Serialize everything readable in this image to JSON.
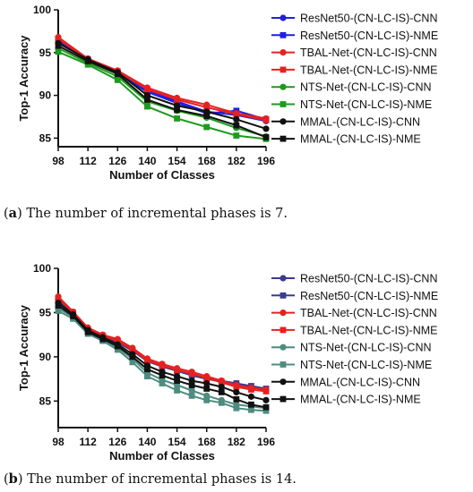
{
  "chart_data": [
    {
      "type": "line",
      "caption_label": "(a)",
      "caption_letter": "a",
      "caption_text": "The number of incremental phases is 7.",
      "xlabel": "Number of Classes",
      "ylabel": "Top-1 Accuracy",
      "x": [
        98,
        112,
        126,
        140,
        154,
        168,
        182,
        196
      ],
      "ylim": [
        84,
        100
      ],
      "yticks": [
        85,
        90,
        95,
        100
      ],
      "grid": false,
      "legend_position": "right",
      "series": [
        {
          "name": "ResNet50-(CN-LC-IS)-CNN",
          "color": "#1f1fe0",
          "marker": "circle",
          "values": [
            96.5,
            94.3,
            92.8,
            90.6,
            89.3,
            88.1,
            87.7,
            87.0
          ]
        },
        {
          "name": "ResNet50-(CN-LC-IS)-NME",
          "color": "#1f1fe0",
          "marker": "square",
          "values": [
            96.3,
            94.2,
            92.6,
            90.4,
            89.1,
            87.9,
            88.2,
            87.2
          ]
        },
        {
          "name": "TBAL-Net-(CN-LC-IS)-CNN",
          "color": "#e82020",
          "marker": "circle",
          "values": [
            96.8,
            94.3,
            92.9,
            90.9,
            89.7,
            88.9,
            87.9,
            87.3
          ]
        },
        {
          "name": "TBAL-Net-(CN-LC-IS)-NME",
          "color": "#e82020",
          "marker": "square",
          "values": [
            96.6,
            94.2,
            92.8,
            90.7,
            89.5,
            88.6,
            87.8,
            87.1
          ]
        },
        {
          "name": "NTS-Net-(CN-LC-IS)-CNN",
          "color": "#1e9a1e",
          "marker": "circle",
          "values": [
            95.5,
            93.8,
            92.2,
            89.3,
            88.2,
            87.4,
            86.2,
            85.2
          ]
        },
        {
          "name": "NTS-Net-(CN-LC-IS)-NME",
          "color": "#1e9a1e",
          "marker": "square",
          "values": [
            95.1,
            93.6,
            91.8,
            88.7,
            87.3,
            86.3,
            85.3,
            84.9
          ]
        },
        {
          "name": "MMAL-(CN-LC-IS)-CNN",
          "color": "#111111",
          "marker": "circle",
          "values": [
            96.1,
            94.2,
            92.7,
            90.0,
            88.8,
            88.1,
            87.2,
            86.1
          ]
        },
        {
          "name": "MMAL-(CN-LC-IS)-NME",
          "color": "#111111",
          "marker": "square",
          "values": [
            95.8,
            94.0,
            92.5,
            89.5,
            88.3,
            87.6,
            86.5,
            85.1
          ]
        }
      ]
    },
    {
      "type": "line",
      "caption_label": "(b)",
      "caption_letter": "b",
      "caption_text": "The number of incremental phases is 14.",
      "xlabel": "Number of Classes",
      "ylabel": "Top-1 Accuracy",
      "x": [
        98,
        105,
        112,
        119,
        126,
        133,
        140,
        147,
        154,
        161,
        168,
        175,
        182,
        189,
        196
      ],
      "xticks": [
        98,
        112,
        126,
        140,
        154,
        168,
        182,
        196
      ],
      "ylim": [
        82,
        100
      ],
      "yticks": [
        85,
        90,
        95,
        100
      ],
      "grid": false,
      "legend_position": "right",
      "series": [
        {
          "name": "ResNet50-(CN-LC-IS)-CNN",
          "color": "#3b3b8f",
          "marker": "circle",
          "values": [
            96.5,
            95.0,
            93.2,
            92.4,
            91.8,
            90.8,
            89.6,
            89.0,
            88.5,
            88.0,
            87.6,
            87.3,
            87.0,
            86.6,
            86.2
          ]
        },
        {
          "name": "ResNet50-(CN-LC-IS)-NME",
          "color": "#3b3b8f",
          "marker": "square",
          "values": [
            96.3,
            94.8,
            93.0,
            92.3,
            91.6,
            90.7,
            89.5,
            88.9,
            88.4,
            87.9,
            87.5,
            87.2,
            87.0,
            86.7,
            86.4
          ]
        },
        {
          "name": "TBAL-Net-(CN-LC-IS)-CNN",
          "color": "#e82020",
          "marker": "circle",
          "values": [
            96.8,
            95.1,
            93.3,
            92.5,
            92.0,
            91.0,
            89.8,
            89.2,
            88.7,
            88.3,
            87.8,
            87.3,
            86.8,
            86.5,
            86.3
          ]
        },
        {
          "name": "TBAL-Net-(CN-LC-IS)-NME",
          "color": "#e82020",
          "marker": "square",
          "values": [
            96.6,
            95.0,
            93.1,
            92.4,
            91.8,
            90.8,
            89.6,
            89.0,
            88.5,
            88.1,
            87.6,
            87.1,
            86.6,
            86.3,
            86.1
          ]
        },
        {
          "name": "NTS-Net-(CN-LC-IS)-CNN",
          "color": "#4e8c80",
          "marker": "circle",
          "values": [
            95.5,
            94.5,
            92.8,
            92.0,
            91.0,
            89.8,
            88.2,
            87.4,
            86.8,
            86.2,
            85.6,
            85.1,
            84.6,
            84.4,
            84.2
          ]
        },
        {
          "name": "NTS-Net-(CN-LC-IS)-NME",
          "color": "#4e8c80",
          "marker": "square",
          "values": [
            95.2,
            94.3,
            92.6,
            91.8,
            90.8,
            89.4,
            87.8,
            87.0,
            86.2,
            85.6,
            85.1,
            84.8,
            84.2,
            84.0,
            83.9
          ]
        },
        {
          "name": "MMAL-(CN-LC-IS)-CNN",
          "color": "#111111",
          "marker": "circle",
          "values": [
            96.1,
            94.8,
            93.0,
            92.2,
            91.4,
            90.3,
            89.0,
            88.3,
            87.8,
            87.3,
            87.0,
            86.6,
            86.0,
            85.5,
            85.1
          ]
        },
        {
          "name": "MMAL-(CN-LC-IS)-NME",
          "color": "#111111",
          "marker": "square",
          "values": [
            95.8,
            94.6,
            92.8,
            92.0,
            91.2,
            90.0,
            88.6,
            87.9,
            87.3,
            86.8,
            86.4,
            86.0,
            85.2,
            84.6,
            84.3
          ]
        }
      ]
    }
  ]
}
